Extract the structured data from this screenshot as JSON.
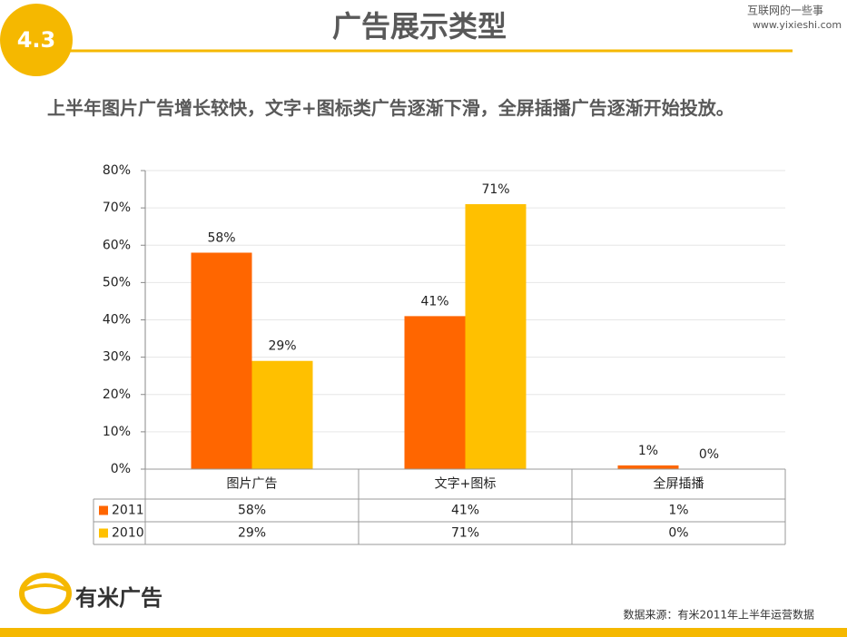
{
  "header": {
    "badge": "4.3",
    "title": "广告展示类型",
    "site_name": "互联网的一些事",
    "site_url": "www.yixieshi.com"
  },
  "headline": "上半年图片广告增长较快，文字+图标类广告逐渐下滑，全屏插播广告逐渐开始投放。",
  "chart_data": {
    "type": "bar",
    "categories": [
      "图片广告",
      "文字+图标",
      "全屏插播"
    ],
    "series": [
      {
        "name": "2011",
        "color": "#ff6600",
        "values": [
          58,
          41,
          1
        ],
        "value_labels": [
          "58%",
          "41%",
          "1%"
        ]
      },
      {
        "name": "2010",
        "color": "#ffc000",
        "values": [
          29,
          71,
          0
        ],
        "value_labels": [
          "29%",
          "71%",
          "0%"
        ]
      }
    ],
    "ylim": [
      0,
      80
    ],
    "yticks": [
      {
        "value": 0,
        "label": "0%"
      },
      {
        "value": 10,
        "label": "10%"
      },
      {
        "value": 20,
        "label": "20%"
      },
      {
        "value": 30,
        "label": "30%"
      },
      {
        "value": 40,
        "label": "40%"
      },
      {
        "value": 50,
        "label": "50%"
      },
      {
        "value": 60,
        "label": "60%"
      },
      {
        "value": 70,
        "label": "70%"
      },
      {
        "value": 80,
        "label": "80%"
      }
    ],
    "grid": true,
    "data_table": true
  },
  "footer": {
    "logo": "有米广告",
    "source": "数据来源：有米2011年上半年运营数据"
  }
}
